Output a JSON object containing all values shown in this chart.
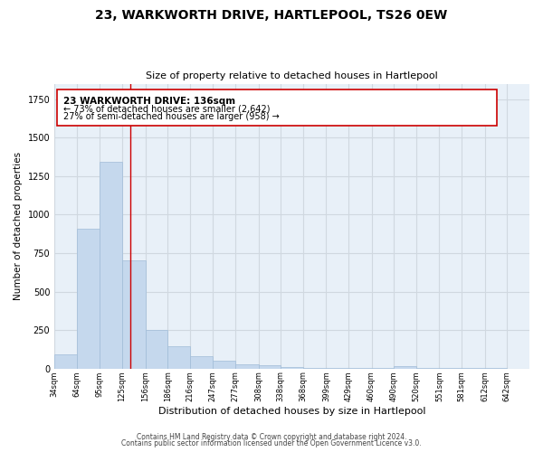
{
  "title": "23, WARKWORTH DRIVE, HARTLEPOOL, TS26 0EW",
  "subtitle": "Size of property relative to detached houses in Hartlepool",
  "xlabel": "Distribution of detached houses by size in Hartlepool",
  "ylabel": "Number of detached properties",
  "bar_left_edges": [
    34,
    64,
    95,
    125,
    156,
    186,
    216,
    247,
    277,
    308,
    338,
    368,
    399,
    429,
    460,
    490,
    520,
    551,
    581,
    612
  ],
  "bar_widths": [
    30,
    31,
    30,
    31,
    30,
    30,
    31,
    30,
    31,
    30,
    30,
    31,
    30,
    31,
    30,
    30,
    31,
    30,
    31,
    30
  ],
  "bar_heights": [
    90,
    910,
    1340,
    700,
    250,
    145,
    80,
    52,
    25,
    20,
    10,
    5,
    3,
    2,
    1,
    15,
    1,
    1,
    1,
    1
  ],
  "bar_color": "#c5d8ed",
  "bar_edge_color": "#a0bcd8",
  "grid_color": "#d0d8e0",
  "bg_color": "#e8f0f8",
  "ylim": [
    0,
    1850
  ],
  "xlim": [
    34,
    672
  ],
  "marker_x": 136,
  "marker_color": "#cc0000",
  "annotation_title": "23 WARKWORTH DRIVE: 136sqm",
  "annotation_line1": "← 73% of detached houses are smaller (2,642)",
  "annotation_line2": "27% of semi-detached houses are larger (958) →",
  "footer_line1": "Contains HM Land Registry data © Crown copyright and database right 2024.",
  "footer_line2": "Contains public sector information licensed under the Open Government Licence v3.0.",
  "tick_labels": [
    "34sqm",
    "64sqm",
    "95sqm",
    "125sqm",
    "156sqm",
    "186sqm",
    "216sqm",
    "247sqm",
    "277sqm",
    "308sqm",
    "338sqm",
    "368sqm",
    "399sqm",
    "429sqm",
    "460sqm",
    "490sqm",
    "520sqm",
    "551sqm",
    "581sqm",
    "612sqm",
    "642sqm"
  ],
  "tick_positions": [
    34,
    64,
    95,
    125,
    156,
    186,
    216,
    247,
    277,
    308,
    338,
    368,
    399,
    429,
    460,
    490,
    520,
    551,
    581,
    612,
    642
  ]
}
